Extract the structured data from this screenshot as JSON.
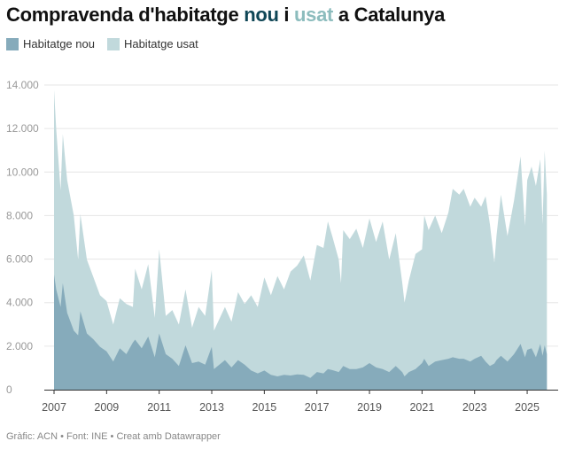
{
  "title": {
    "part1": "Compravenda d'habitatge ",
    "part2": "nou",
    "part3": " i ",
    "part4": "usat",
    "part5": " a Catalunya"
  },
  "colors": {
    "nou": "#86abbb",
    "usat": "#c1d9dc",
    "title_nou": "#0f4656",
    "title_usat": "#8cbcbd"
  },
  "footer": "Gràfic: ACN • Font: INE • Creat amb Datawrapper",
  "chart_data": {
    "type": "area",
    "ylim": [
      0,
      14000
    ],
    "xlim": [
      "2007-01",
      "2025-10"
    ],
    "grid": true,
    "legend_placement": "top-left",
    "y_ticks": [
      "0",
      "2.000",
      "4.000",
      "6.000",
      "8.000",
      "10.000",
      "12.000",
      "14.000"
    ],
    "y_tick_values": [
      0,
      2000,
      4000,
      6000,
      8000,
      10000,
      12000,
      14000
    ],
    "x_ticks": [
      "2007",
      "2009",
      "2011",
      "2013",
      "2015",
      "2017",
      "2019",
      "2021",
      "2023",
      "2025"
    ],
    "x": [
      "2007-01",
      "2007-02",
      "2007-04",
      "2007-05",
      "2007-07",
      "2007-10",
      "2007-12",
      "2008-01",
      "2008-04",
      "2008-07",
      "2008-10",
      "2009-01",
      "2009-04",
      "2009-07",
      "2009-10",
      "2010-01",
      "2010-02",
      "2010-05",
      "2010-08",
      "2010-11",
      "2011-01",
      "2011-04",
      "2011-07",
      "2011-10",
      "2012-01",
      "2012-04",
      "2012-07",
      "2012-10",
      "2013-01",
      "2013-02",
      "2013-07",
      "2013-10",
      "2014-01",
      "2014-04",
      "2014-07",
      "2014-10",
      "2015-01",
      "2015-04",
      "2015-07",
      "2015-10",
      "2016-01",
      "2016-04",
      "2016-07",
      "2016-10",
      "2017-01",
      "2017-04",
      "2017-06",
      "2017-08",
      "2017-11",
      "2017-12",
      "2018-01",
      "2018-04",
      "2018-07",
      "2018-10",
      "2019-01",
      "2019-04",
      "2019-07",
      "2019-10",
      "2020-01",
      "2020-04",
      "2020-05",
      "2020-07",
      "2020-10",
      "2021-01",
      "2021-02",
      "2021-04",
      "2021-07",
      "2021-10",
      "2022-01",
      "2022-03",
      "2022-06",
      "2022-08",
      "2022-11",
      "2023-01",
      "2023-04",
      "2023-06",
      "2023-08",
      "2023-10",
      "2023-11",
      "2024-01",
      "2024-04",
      "2024-07",
      "2024-10",
      "2024-12",
      "2025-01",
      "2025-03",
      "2025-05",
      "2025-07",
      "2025-08",
      "2025-09",
      "2025-10"
    ],
    "series": [
      {
        "name": "Habitatge usat",
        "values": [
          13780,
          11940,
          9160,
          11740,
          9630,
          8000,
          5970,
          8070,
          5970,
          5160,
          4340,
          4070,
          2990,
          4200,
          3940,
          3800,
          5560,
          4610,
          5770,
          3300,
          6450,
          3390,
          3660,
          2990,
          4610,
          2850,
          3800,
          3390,
          5500,
          2710,
          3800,
          3120,
          4480,
          3940,
          4340,
          3800,
          5160,
          4340,
          5220,
          4610,
          5430,
          5700,
          6170,
          5020,
          6650,
          6510,
          7730,
          7060,
          5970,
          4890,
          7330,
          6920,
          7400,
          6510,
          7870,
          6790,
          7730,
          5970,
          7190,
          4890,
          4000,
          5020,
          6240,
          6450,
          8010,
          7330,
          8010,
          7190,
          8140,
          9230,
          8960,
          9230,
          8410,
          8820,
          8410,
          8890,
          7600,
          5840,
          7060,
          8960,
          7060,
          8690,
          10720,
          7530,
          9630,
          10250,
          9360,
          10590,
          7600,
          10990,
          8960
        ]
      },
      {
        "name": "Habitatge nou",
        "values": [
          5290,
          4600,
          3800,
          4890,
          3530,
          2710,
          2500,
          3600,
          2580,
          2310,
          1970,
          1760,
          1290,
          1900,
          1630,
          2170,
          2300,
          1900,
          2440,
          1490,
          2580,
          1630,
          1420,
          1090,
          2040,
          1220,
          1290,
          1150,
          1970,
          950,
          1360,
          1020,
          1360,
          1150,
          880,
          750,
          880,
          680,
          610,
          680,
          650,
          700,
          680,
          540,
          810,
          750,
          950,
          900,
          810,
          950,
          1090,
          950,
          950,
          1020,
          1220,
          1020,
          950,
          810,
          1090,
          800,
          610,
          810,
          950,
          1220,
          1420,
          1090,
          1290,
          1360,
          1420,
          1490,
          1420,
          1420,
          1290,
          1420,
          1560,
          1290,
          1090,
          1200,
          1360,
          1560,
          1290,
          1630,
          2100,
          1490,
          1830,
          1900,
          1490,
          2100,
          1560,
          2040,
          1630
        ]
      }
    ]
  }
}
